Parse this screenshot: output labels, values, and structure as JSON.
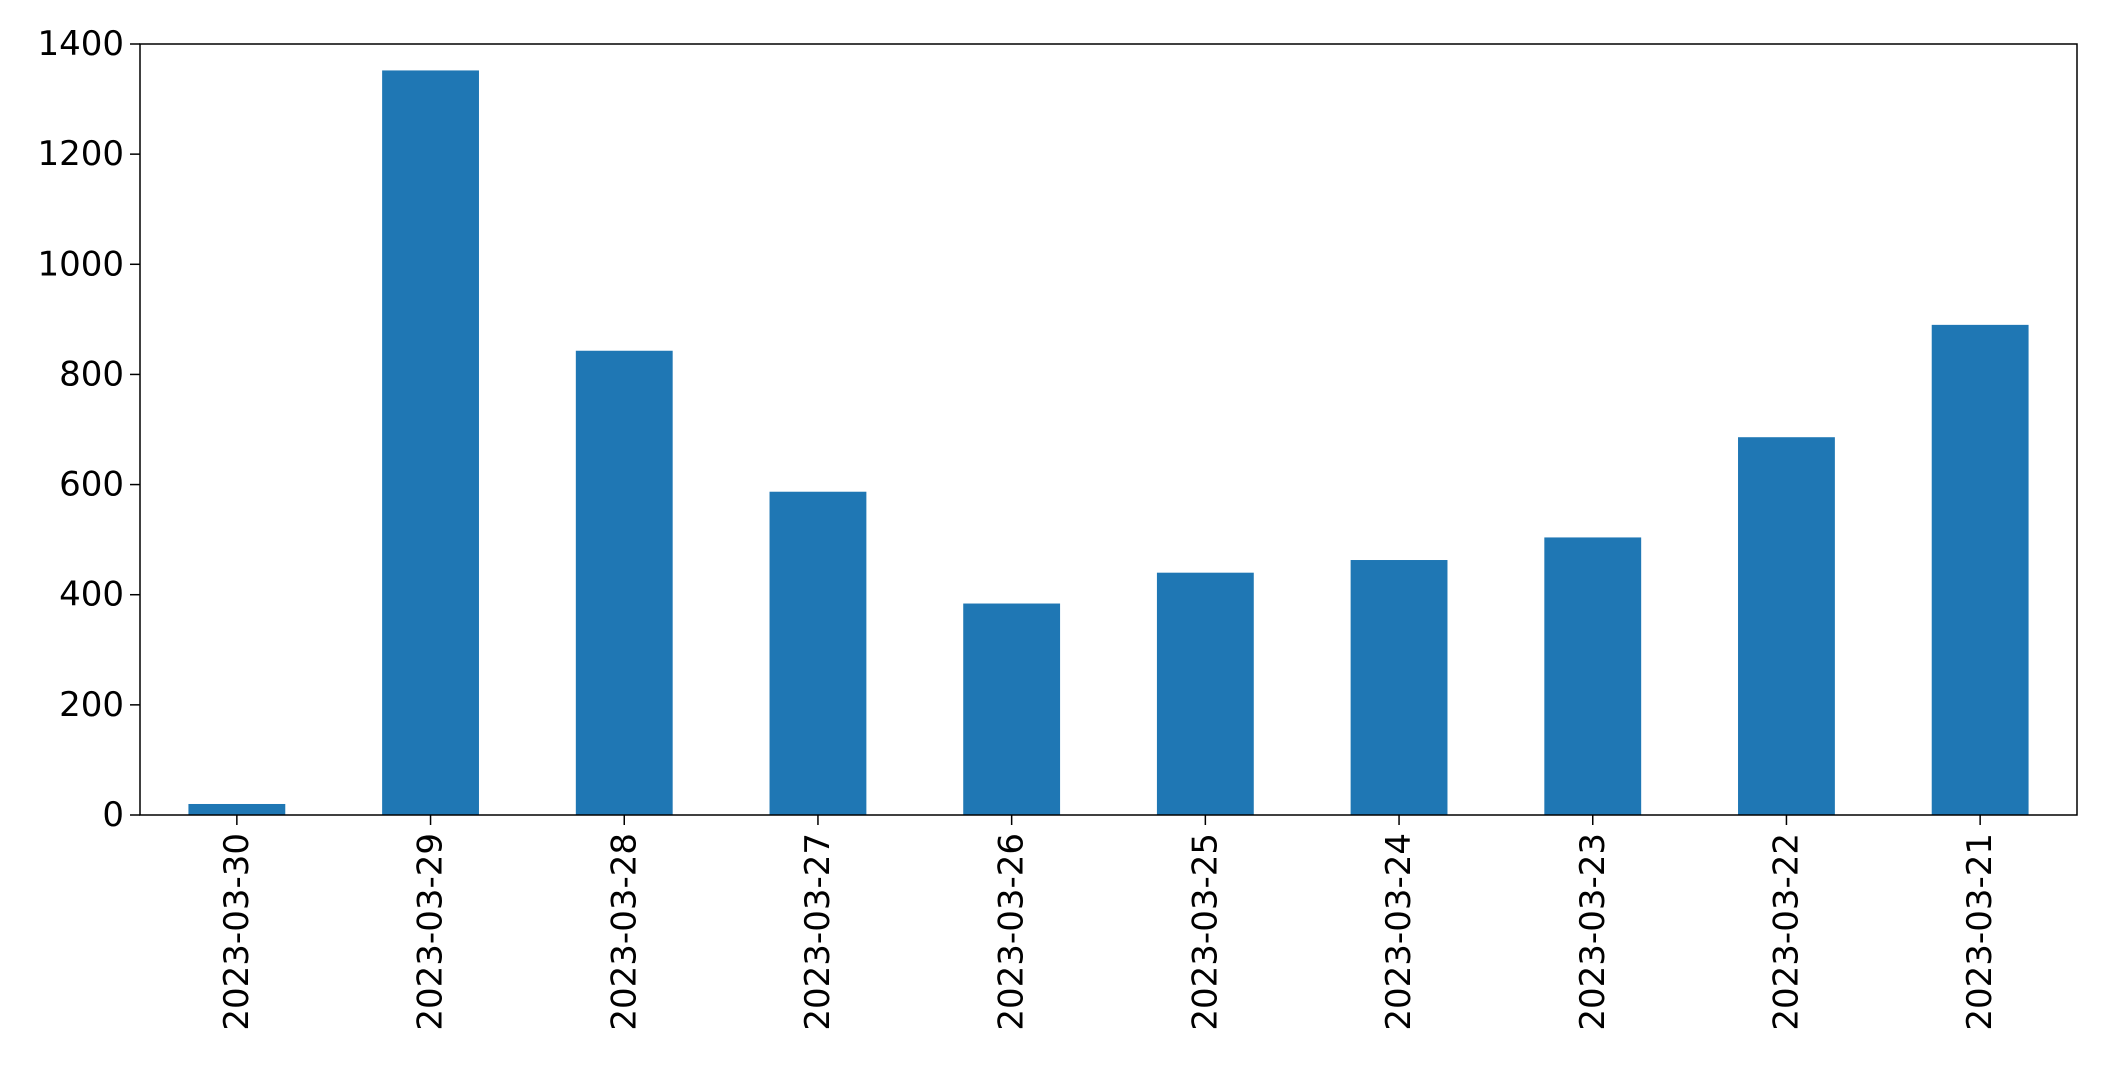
{
  "chart_data": {
    "type": "bar",
    "title": "",
    "xlabel": "",
    "ylabel": "",
    "categories": [
      "2023-03-30",
      "2023-03-29",
      "2023-03-28",
      "2023-03-27",
      "2023-03-26",
      "2023-03-25",
      "2023-03-24",
      "2023-03-23",
      "2023-03-22",
      "2023-03-21"
    ],
    "values": [
      20,
      1352,
      843,
      587,
      384,
      440,
      463,
      504,
      686,
      890
    ],
    "ylim": [
      0,
      1400
    ],
    "yticks": [
      0,
      200,
      400,
      600,
      800,
      1000,
      1200,
      1400
    ],
    "ytick_labels": [
      "0",
      "200",
      "400",
      "600",
      "800",
      "1000",
      "1200",
      "1400"
    ],
    "grid": false,
    "legend": "none",
    "bar_color": "#1f77b4",
    "x_tick_rotation": "vertical"
  }
}
